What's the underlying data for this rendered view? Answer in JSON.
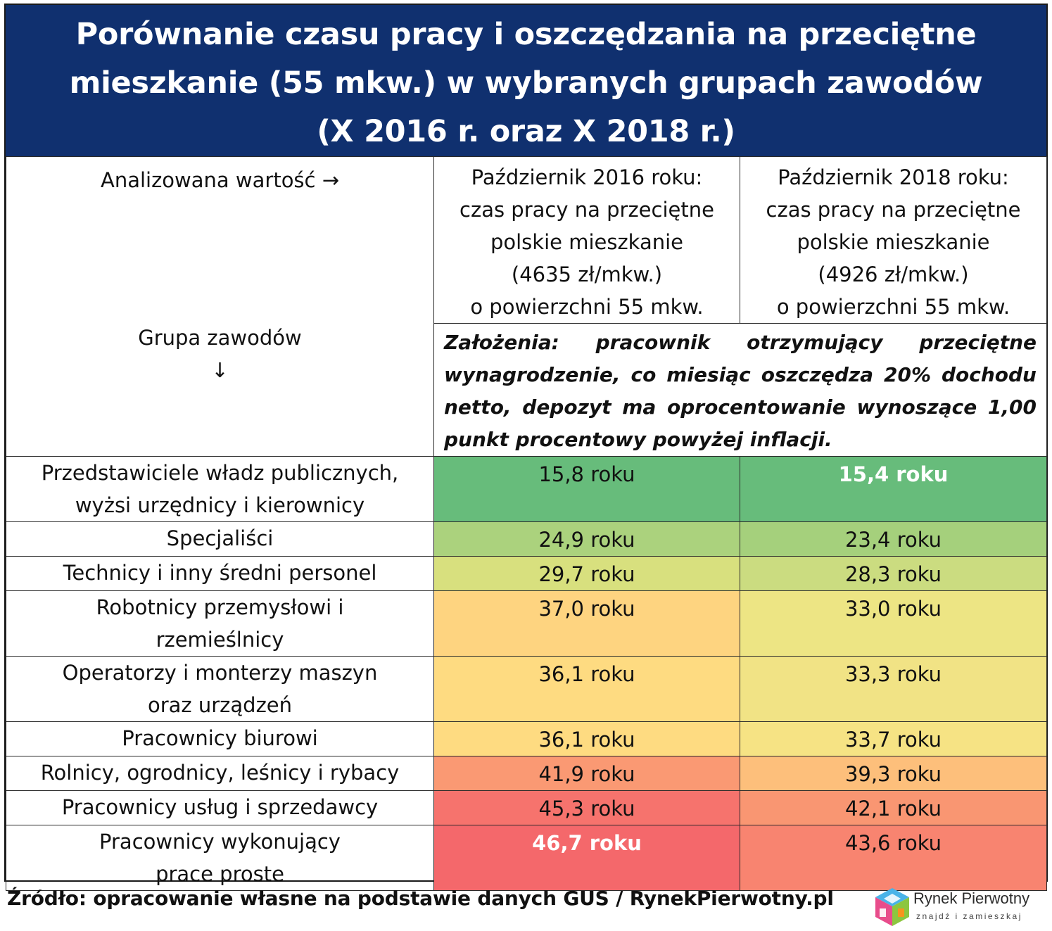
{
  "title_lines": [
    "Porównanie czasu pracy i oszczędzania na przeciętne",
    "mieszkanie (55 mkw.) w wybranych grupach zawodów",
    "(X 2016 r. oraz X 2018 r.)"
  ],
  "header": {
    "analyzed_value": "Analizowana wartość →",
    "group_label": "Grupa zawodów",
    "group_arrow": "↓",
    "col2016_lines": [
      "Październik 2016 roku:",
      "czas pracy na przeciętne",
      "polskie mieszkanie",
      "(4635 zł/mkw.)",
      "o powierzchni 55 mkw."
    ],
    "col2018_lines": [
      "Październik 2018 roku:",
      "czas pracy na przeciętne",
      "polskie mieszkanie",
      "(4926 zł/mkw.)",
      "o powierzchni 55 mkw."
    ],
    "assumptions": "Założenia: pracownik otrzymujący przeciętne wynagrodzenie, co miesiąc oszczędza 20% dochodu netto, depozyt ma oprocentowanie wynoszące 1,00 punkt procentowy powyżej inflacji."
  },
  "chart_data": {
    "type": "table",
    "columns": [
      "Październik 2016 roku",
      "Październik 2018 roku"
    ],
    "unit": "roku",
    "rows": [
      {
        "group_lines": [
          "Przedstawiciele władz publicznych,",
          "wyżsi urzędnicy i kierownicy"
        ],
        "v2016": "15,8 roku",
        "v2018": "15,4 roku",
        "c2016": "#67bc7b",
        "c2018": "#67bc7b",
        "emph2016": false,
        "emph2018": true
      },
      {
        "group_lines": [
          "Specjaliści"
        ],
        "v2016": "24,9 roku",
        "v2018": "23,4 roku",
        "c2016": "#abd27d",
        "c2018": "#a5d07c",
        "emph2016": false,
        "emph2018": false
      },
      {
        "group_lines": [
          "Technicy i inny średni personel"
        ],
        "v2016": "29,7 roku",
        "v2018": "28,3 roku",
        "c2016": "#d8e07e",
        "c2018": "#cbdc80",
        "emph2016": false,
        "emph2018": false
      },
      {
        "group_lines": [
          "Robotnicy przemysłowi i",
          "rzemieślnicy"
        ],
        "v2016": "37,0 roku",
        "v2018": "33,0 roku",
        "c2016": "#fed480",
        "c2018": "#ede584",
        "emph2016": false,
        "emph2018": false
      },
      {
        "group_lines": [
          "Operatorzy i monterzy maszyn",
          "oraz urządzeń"
        ],
        "v2016": "36,1 roku",
        "v2018": "33,3 roku",
        "c2016": "#fedb81",
        "c2018": "#f1e385",
        "emph2016": false,
        "emph2018": false
      },
      {
        "group_lines": [
          "Pracownicy biurowi"
        ],
        "v2016": "36,1 roku",
        "v2018": "33,7 roku",
        "c2016": "#fedb81",
        "c2018": "#f6e384",
        "emph2016": false,
        "emph2018": false
      },
      {
        "group_lines": [
          "Rolnicy, ogrodnicy, leśnicy i rybacy"
        ],
        "v2016": "41,9 roku",
        "v2018": "39,3 roku",
        "c2016": "#fa9973",
        "c2018": "#fdbf7b",
        "emph2016": false,
        "emph2018": false
      },
      {
        "group_lines": [
          "Pracownicy usług i sprzedawcy"
        ],
        "v2016": "45,3 roku",
        "v2018": "42,1 roku",
        "c2016": "#f6736d",
        "c2018": "#f99672",
        "emph2016": false,
        "emph2018": false
      },
      {
        "group_lines": [
          "Pracownicy wykonujący",
          "prace proste"
        ],
        "v2016": "46,7 roku",
        "v2018": "43,6 roku",
        "c2016": "#f4686b",
        "c2018": "#f88470",
        "emph2016": true,
        "emph2018": false
      }
    ]
  },
  "source": "Źródło: opracowanie własne na podstawie danych GUS / RynekPierwotny.pl",
  "logo": {
    "name": "Rynek Pierwotny",
    "tagline": "znajdź i zamieszkaj",
    "colors": [
      "#49b3e8",
      "#8cc63f",
      "#e84c8b",
      "#f7941d",
      "#6a5aa8"
    ]
  }
}
